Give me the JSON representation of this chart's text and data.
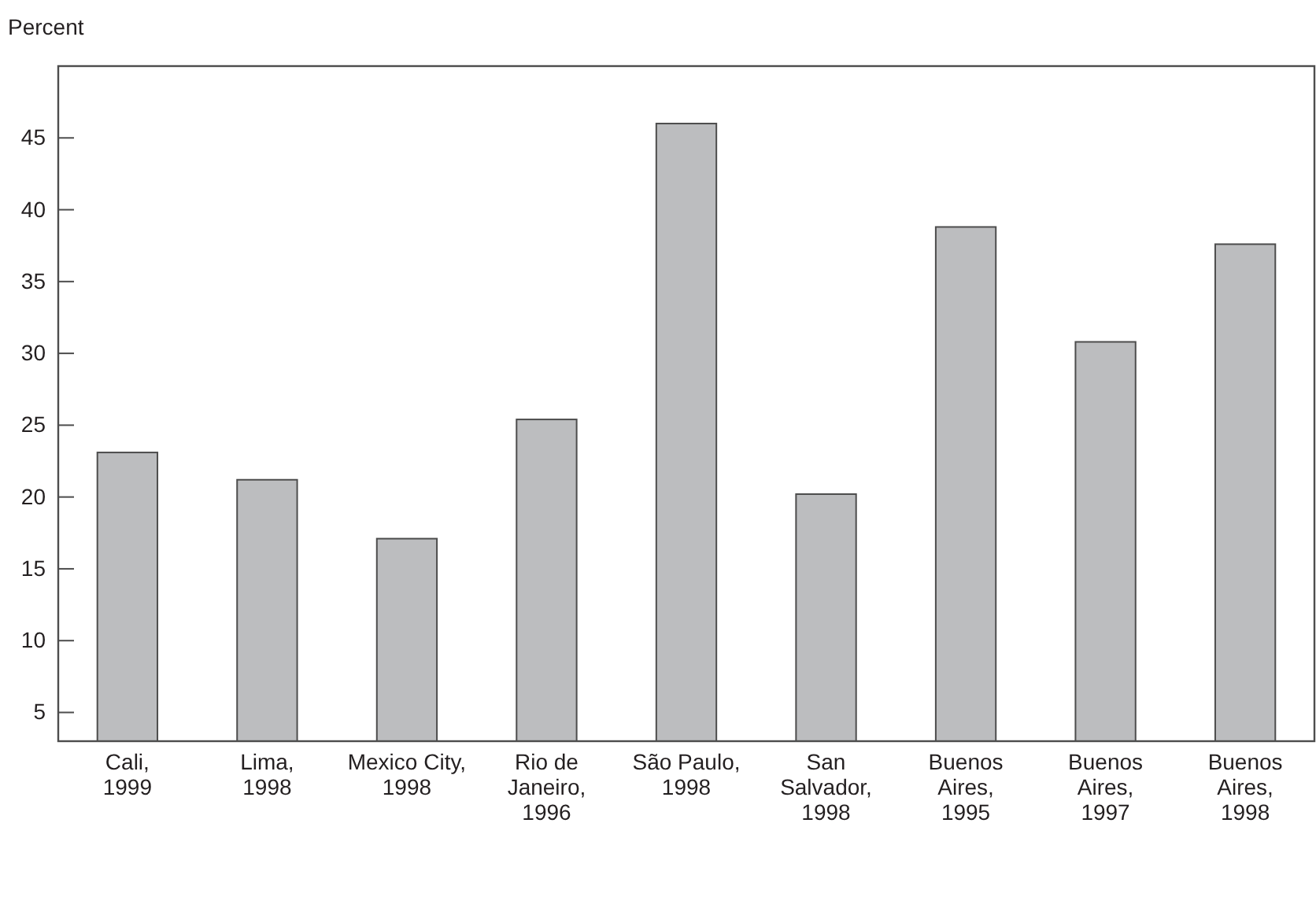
{
  "chart_data": {
    "type": "bar",
    "ylabel": "Percent",
    "categories": [
      "Cali,\n1999",
      "Lima,\n1998",
      "Mexico City,\n1998",
      "Rio de\nJaneiro,\n1996",
      "São Paulo,\n1998",
      "San\nSalvador,\n1998",
      "Buenos\nAires,\n1995",
      "Buenos\nAires,\n1997",
      "Buenos\nAires,\n1998"
    ],
    "values": [
      23.1,
      21.2,
      17.1,
      25.4,
      46.0,
      20.2,
      38.8,
      30.8,
      37.6
    ],
    "color": "#bcbdbf",
    "ylim": [
      3,
      50
    ],
    "yticks": [
      5,
      10,
      15,
      20,
      25,
      30,
      35,
      40,
      45
    ],
    "grid": false
  }
}
